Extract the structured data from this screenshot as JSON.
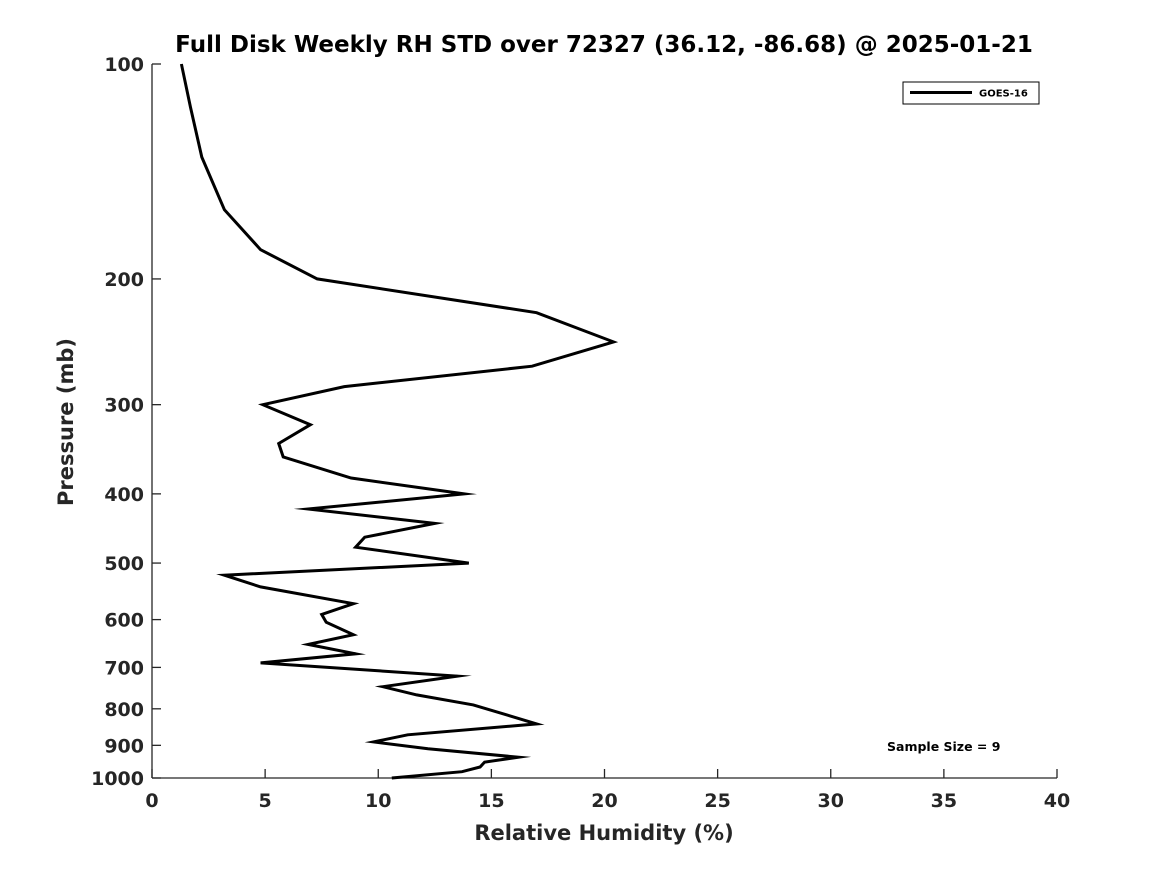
{
  "chart_data": {
    "type": "line",
    "title": "Full Disk Weekly RH STD over 72327 (36.12, -86.68) @ 2025-01-21",
    "xlabel": "Relative Humidity (%)",
    "ylabel": "Pressure (mb)",
    "xlim": [
      0,
      40
    ],
    "ylim": [
      100,
      1000
    ],
    "y_scale": "log",
    "y_reversed": true,
    "grid": false,
    "legend_position": "top-right",
    "x_ticks": [
      "0",
      "5",
      "10",
      "15",
      "20",
      "25",
      "30",
      "35",
      "40"
    ],
    "y_ticks": [
      "100",
      "200",
      "300",
      "400",
      "500",
      "600",
      "700",
      "800",
      "900",
      "1000"
    ],
    "annotation": "Sample Size = 9",
    "series": [
      {
        "name": "GOES-16",
        "color": "#000000",
        "points": [
          [
            1.3,
            100
          ],
          [
            1.7,
            115
          ],
          [
            2.2,
            135
          ],
          [
            3.2,
            160
          ],
          [
            4.8,
            182
          ],
          [
            7.3,
            200
          ],
          [
            17.0,
            223
          ],
          [
            20.4,
            245
          ],
          [
            16.8,
            265
          ],
          [
            8.5,
            283
          ],
          [
            4.9,
            300
          ],
          [
            7.0,
            320
          ],
          [
            5.6,
            340
          ],
          [
            5.8,
            355
          ],
          [
            8.8,
            380
          ],
          [
            13.8,
            400
          ],
          [
            6.9,
            420
          ],
          [
            12.5,
            440
          ],
          [
            9.4,
            460
          ],
          [
            9.0,
            475
          ],
          [
            14.0,
            500
          ],
          [
            3.2,
            520
          ],
          [
            4.8,
            540
          ],
          [
            8.9,
            570
          ],
          [
            7.5,
            590
          ],
          [
            7.7,
            605
          ],
          [
            8.9,
            630
          ],
          [
            6.9,
            650
          ],
          [
            9.0,
            670
          ],
          [
            4.8,
            690
          ],
          [
            13.5,
            720
          ],
          [
            10.2,
            745
          ],
          [
            11.7,
            765
          ],
          [
            14.2,
            790
          ],
          [
            17.0,
            840
          ],
          [
            11.3,
            870
          ],
          [
            9.8,
            890
          ],
          [
            12.2,
            910
          ],
          [
            16.2,
            935
          ],
          [
            14.7,
            950
          ],
          [
            14.5,
            965
          ],
          [
            13.7,
            980
          ],
          [
            10.6,
            1000
          ]
        ]
      }
    ]
  }
}
